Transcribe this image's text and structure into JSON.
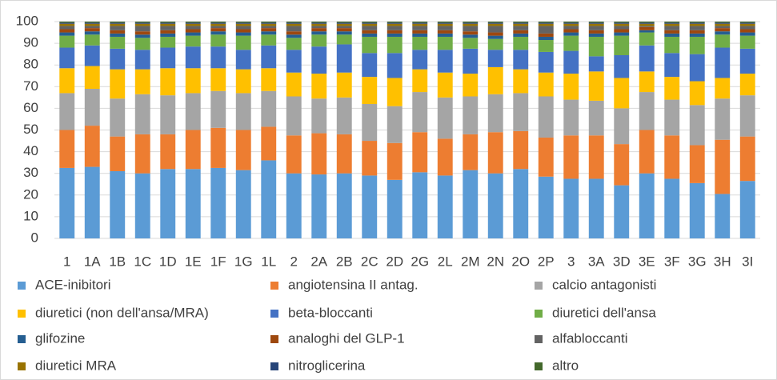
{
  "chart_data": {
    "type": "stacked_bar",
    "categories": [
      "1",
      "1A",
      "1B",
      "1C",
      "1D",
      "1E",
      "1F",
      "1G",
      "1L",
      "2",
      "2A",
      "2B",
      "2C",
      "2D",
      "2G",
      "2L",
      "2M",
      "2N",
      "2O",
      "2P",
      "3",
      "3A",
      "3D",
      "3E",
      "3F",
      "3G",
      "3H",
      "3I"
    ],
    "series": [
      {
        "name": "ACE-inibitori",
        "color": "#5b9bd5",
        "values": [
          32.5,
          33,
          31,
          30,
          32,
          32,
          32.5,
          31.5,
          36,
          30,
          29.5,
          30,
          29,
          27,
          30.5,
          29,
          31.5,
          30,
          32,
          28.5,
          27.5,
          27.5,
          24.5,
          30,
          27.5,
          25.5,
          20.5,
          26.5
        ]
      },
      {
        "name": "angiotensina II antag.",
        "color": "#ed7d31",
        "values": [
          17.5,
          19,
          16,
          18,
          16,
          18,
          18.5,
          18.5,
          15.5,
          17.5,
          19,
          18,
          16,
          17,
          18.5,
          17,
          16.5,
          19,
          17.5,
          18,
          20,
          20,
          19,
          20,
          20,
          17.5,
          25,
          20.5
        ]
      },
      {
        "name": "calcio antagonisti",
        "color": "#a5a5a5",
        "values": [
          17,
          17,
          17.5,
          18.5,
          18,
          17,
          17,
          17,
          16.5,
          18,
          16,
          17,
          17,
          17,
          18.5,
          19,
          17.5,
          17.5,
          17.5,
          19,
          16.5,
          16,
          16.5,
          17.5,
          16.5,
          18.5,
          19,
          19
        ]
      },
      {
        "name": "diuretici (non dell'ansa/MRA)",
        "color": "#ffc000",
        "values": [
          11.5,
          10.5,
          13.5,
          11.5,
          12.5,
          11.5,
          10.5,
          11,
          10.5,
          11,
          11.5,
          11.5,
          12.5,
          13,
          10.5,
          11.5,
          10.5,
          12.5,
          11,
          11,
          12,
          13.5,
          14,
          9.5,
          10.5,
          11,
          9.5,
          10
        ]
      },
      {
        "name": "beta-bloccanti",
        "color": "#4472c4",
        "values": [
          9.5,
          9.5,
          9.5,
          9,
          9.5,
          10,
          10,
          9,
          10.5,
          10.5,
          12.5,
          13,
          11,
          11.5,
          9,
          10.5,
          11.5,
          8,
          9,
          9.5,
          10.5,
          7,
          10.5,
          12,
          11,
          12.5,
          14,
          11.5
        ]
      },
      {
        "name": "diuretici dell'ansa",
        "color": "#70ad47",
        "values": [
          5.5,
          5,
          5.5,
          5.5,
          5,
          5,
          5.5,
          6.5,
          5,
          5.5,
          5.5,
          4.5,
          7.5,
          7.5,
          6,
          6,
          5,
          5,
          6,
          5.5,
          7,
          9,
          9,
          6,
          7.5,
          8,
          6,
          6
        ]
      },
      {
        "name": "glifozine",
        "color": "#255e91",
        "values": [
          1.5,
          1.5,
          1.5,
          1.5,
          1.5,
          1.5,
          1.5,
          1.5,
          1.5,
          1.5,
          1.5,
          1.5,
          1.5,
          1.5,
          1.5,
          1.5,
          1.5,
          1.5,
          1.5,
          1.5,
          1.5,
          1.5,
          1.5,
          1,
          1.5,
          1.5,
          1.5,
          1.5
        ]
      },
      {
        "name": "analoghi del GLP-1",
        "color": "#9e480e",
        "values": [
          1.5,
          1.5,
          1.5,
          1.5,
          1.5,
          1.5,
          1.5,
          1.5,
          1.5,
          1.5,
          1.5,
          1.5,
          1.5,
          1.5,
          1.5,
          1.5,
          1.5,
          1.5,
          1.5,
          1.5,
          1.5,
          1.5,
          1.5,
          1.5,
          1.5,
          1.5,
          1.5,
          1.5
        ]
      },
      {
        "name": "alfabloccanti",
        "color": "#636363",
        "values": [
          1.5,
          1,
          2,
          2.5,
          2,
          1.5,
          1,
          1.5,
          1,
          2.5,
          1,
          1,
          2,
          2,
          2,
          2,
          2.5,
          3,
          2,
          3.5,
          1.5,
          2,
          1.5,
          0.5,
          2,
          2,
          1,
          1.5
        ]
      },
      {
        "name": "diuretici MRA",
        "color": "#997300",
        "values": [
          1,
          1,
          1,
          1,
          1,
          1,
          1,
          1,
          1,
          1,
          1,
          1,
          1,
          1,
          1,
          1,
          1,
          1,
          1,
          1,
          1,
          1,
          1,
          1,
          1,
          1,
          1,
          1
        ]
      },
      {
        "name": "nitroglicerina",
        "color": "#264478",
        "values": [
          0.5,
          0.5,
          0.5,
          0.5,
          0.5,
          0.5,
          0.5,
          0.5,
          0.5,
          0.5,
          0.5,
          0.5,
          0.5,
          0.5,
          0.5,
          0.5,
          0.5,
          0.5,
          0.5,
          0.5,
          0.5,
          0.5,
          0.5,
          0.5,
          0.5,
          0.5,
          0.5,
          0.5
        ]
      },
      {
        "name": "altro",
        "color": "#43682b",
        "values": [
          0.5,
          0.5,
          0.5,
          0.5,
          0.5,
          0.5,
          0.5,
          0.5,
          0.5,
          0.5,
          0.5,
          0.5,
          0.5,
          0.5,
          0.5,
          0.5,
          0.5,
          0.5,
          0.5,
          0.5,
          0.5,
          0.5,
          0.5,
          0.5,
          0.5,
          0.5,
          0.5,
          0.5
        ]
      }
    ],
    "ylim": [
      0,
      100
    ],
    "yticks": [
      0,
      10,
      20,
      30,
      40,
      50,
      60,
      70,
      80,
      90,
      100
    ],
    "grid": true,
    "legend": "bottom"
  }
}
